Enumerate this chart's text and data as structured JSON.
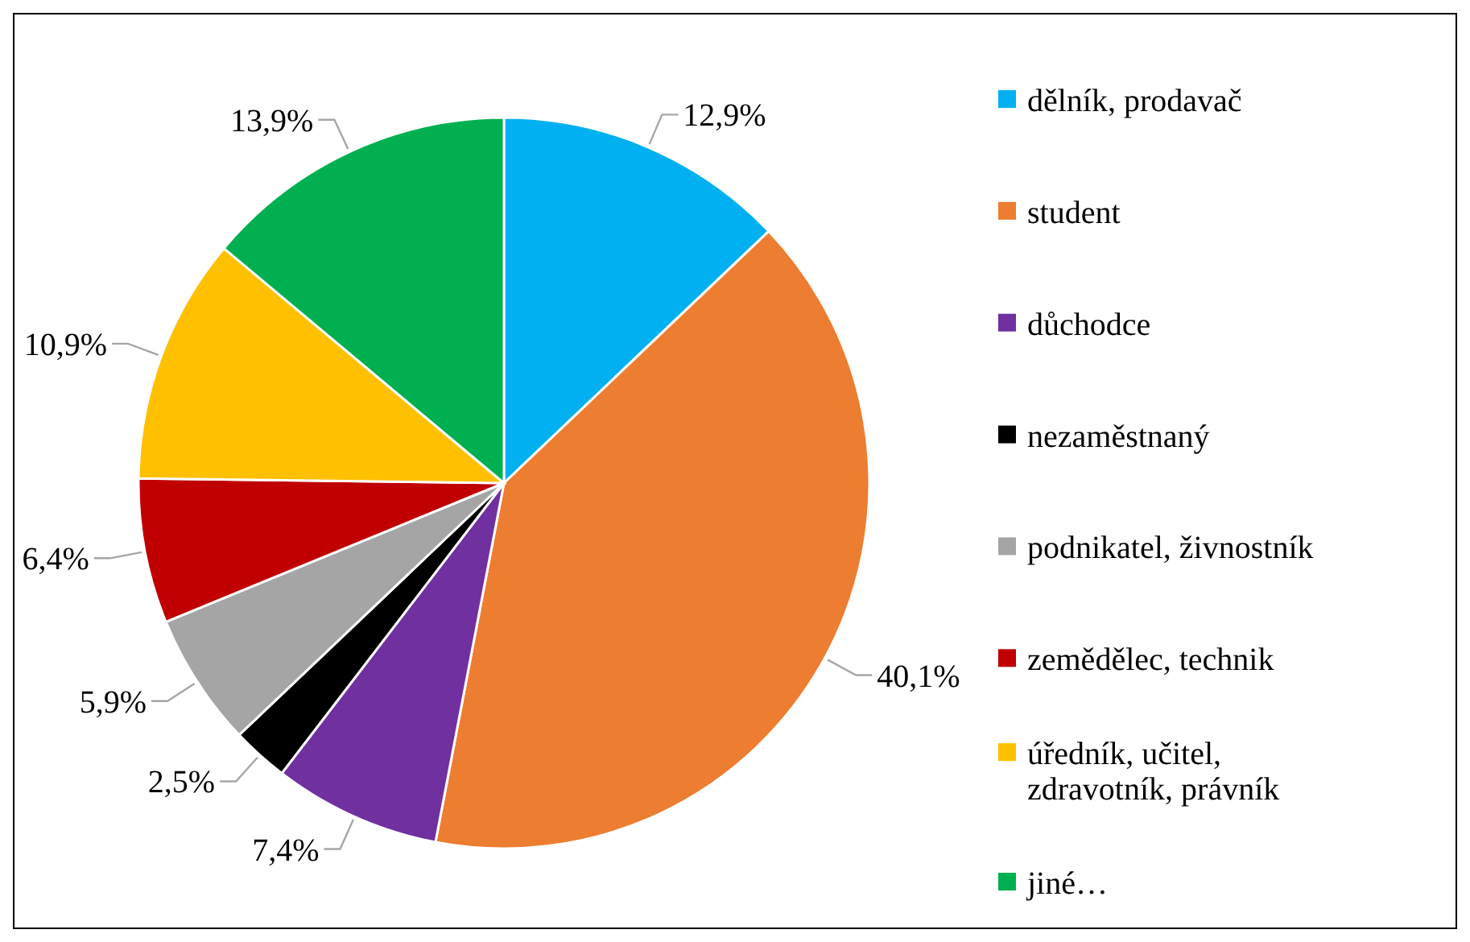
{
  "chart_data": {
    "type": "pie",
    "categories": [
      "dělník, prodavač",
      "student",
      "důchodce",
      "nezaměstnaný",
      "podnikatel, živnostník",
      "zemědělec, technik",
      "úředník, učitel, zdravotník, právník",
      "jiné…"
    ],
    "values": [
      12.9,
      40.1,
      7.4,
      2.5,
      5.9,
      6.4,
      10.9,
      13.9
    ],
    "colors": [
      "#00b0f0",
      "#ed7d31",
      "#7030a0",
      "#000000",
      "#a5a5a5",
      "#c00000",
      "#ffc000",
      "#00b050"
    ],
    "value_labels": [
      "12,9%",
      "40,1%",
      "7,4%",
      "2,5%",
      "5,9%",
      "6,4%",
      "10,9%",
      "13,9%"
    ],
    "legend": "right"
  }
}
